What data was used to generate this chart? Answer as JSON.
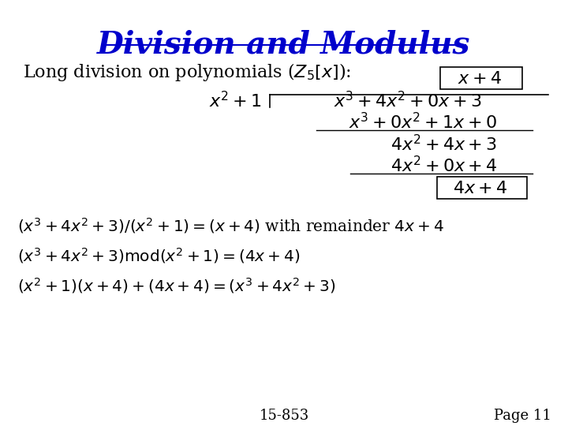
{
  "title": "Division and Modulus",
  "title_color": "#0000CC",
  "title_fontsize": 28,
  "background_color": "#FFFFFF",
  "subtitle": "Long division on polynomials ($Z_5[x]$):",
  "subtitle_fontsize": 16,
  "footer_left": "15-853",
  "footer_right": "Page 11",
  "footer_fontsize": 13,
  "math_fontsize": 16,
  "eq_fontsize": 14.5
}
